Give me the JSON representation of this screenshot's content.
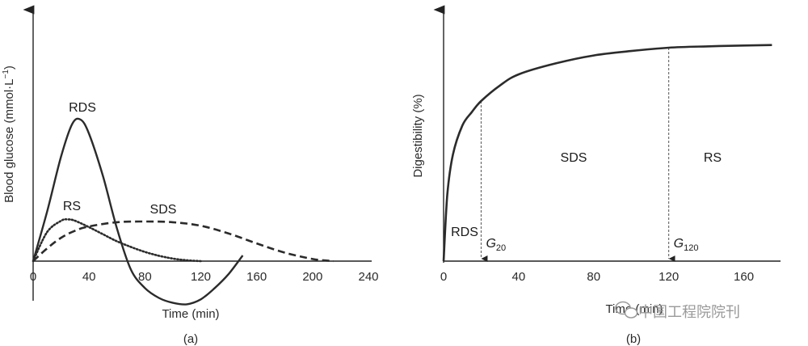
{
  "chart_data": [
    {
      "type": "line",
      "panel_label": "(a)",
      "xlabel": "Time (min)",
      "ylabel": "Blood glucose (mmol·L",
      "ylabel_sup": "−1",
      "ylabel_close": ")",
      "xlim": [
        0,
        240
      ],
      "xticks": [
        0,
        40,
        80,
        120,
        160,
        200,
        240
      ],
      "tick_labels": [
        "0",
        "40",
        "80",
        "120",
        "160",
        "200",
        "240"
      ],
      "grid": false,
      "series": [
        {
          "name": "RDS",
          "style": "solid",
          "x": [
            0,
            10,
            20,
            28,
            34,
            40,
            50,
            60,
            70,
            80,
            90,
            100,
            110,
            120,
            130,
            140,
            150
          ],
          "y": [
            0,
            3.5,
            7.4,
            9.7,
            10.0,
            9.0,
            6.0,
            2.3,
            -0.6,
            -1.9,
            -2.6,
            -2.95,
            -3.05,
            -2.7,
            -1.9,
            -0.9,
            0.4
          ]
        },
        {
          "name": "RS",
          "style": "dotted",
          "x": [
            0,
            10,
            20,
            25,
            30,
            40,
            50,
            60,
            70,
            80,
            90,
            100,
            110,
            120
          ],
          "y": [
            0,
            2.05,
            2.85,
            2.95,
            2.85,
            2.4,
            1.9,
            1.4,
            1.0,
            0.65,
            0.38,
            0.18,
            0.06,
            0
          ]
        },
        {
          "name": "SDS",
          "style": "dashed",
          "x": [
            0,
            10,
            20,
            30,
            40,
            60,
            80,
            100,
            120,
            140,
            160,
            180,
            200,
            210,
            215
          ],
          "y": [
            0,
            0.9,
            1.65,
            2.15,
            2.45,
            2.75,
            2.8,
            2.75,
            2.5,
            1.95,
            1.25,
            0.6,
            0.15,
            0.04,
            0
          ]
        }
      ],
      "annotations": [
        "RDS",
        "RS",
        "SDS"
      ]
    },
    {
      "type": "line",
      "panel_label": "(b)",
      "xlabel": "Time (min)",
      "ylabel": "Digestibility (%)",
      "xlim": [
        0,
        180
      ],
      "xticks": [
        0,
        40,
        80,
        120,
        160
      ],
      "tick_labels": [
        "0",
        "40",
        "80",
        "120",
        "160"
      ],
      "grid": false,
      "series": [
        {
          "name": "Digestibility",
          "style": "solid",
          "x": [
            0,
            2,
            5,
            10,
            15,
            20,
            30,
            40,
            60,
            80,
            100,
            120,
            140,
            160,
            175
          ],
          "y": [
            0,
            30,
            48,
            61,
            67,
            72,
            79,
            84,
            89,
            92.5,
            94.5,
            96,
            96.6,
            97,
            97.2
          ]
        }
      ],
      "markers": [
        {
          "x": 20,
          "label": "G",
          "sub": "20"
        },
        {
          "x": 120,
          "label": "G",
          "sub": "120"
        }
      ],
      "regions": [
        "RDS",
        "SDS",
        "RS"
      ]
    }
  ],
  "watermark": "中国工程院院刊"
}
